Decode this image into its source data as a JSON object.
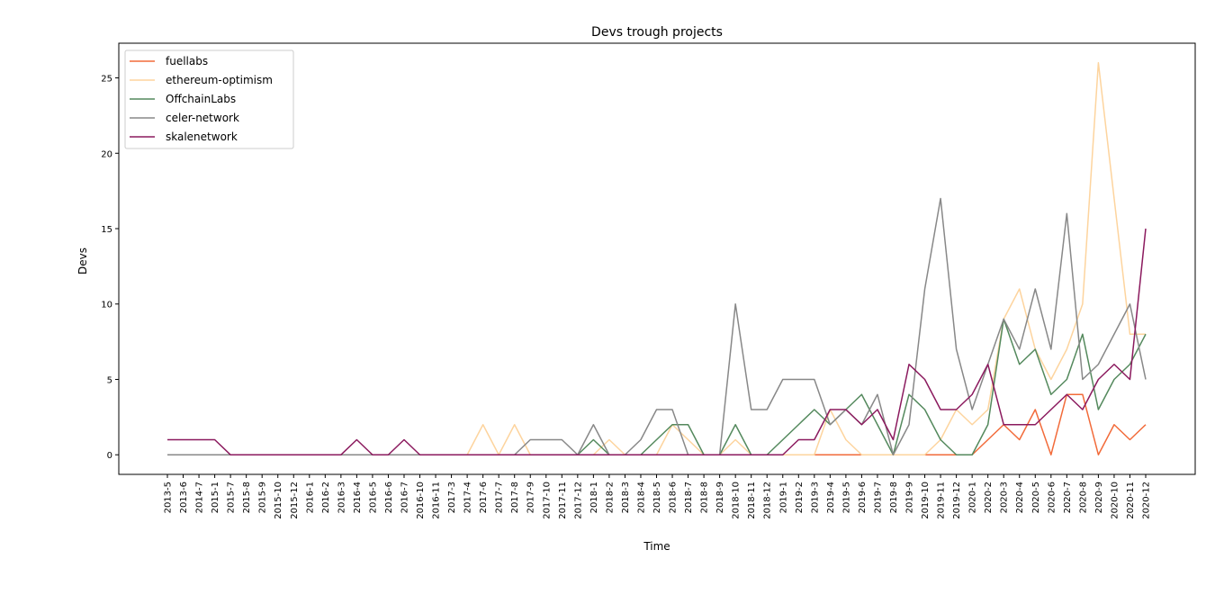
{
  "chart_data": {
    "type": "line",
    "title": "Devs trough projects",
    "xlabel": "Time",
    "ylabel": "Devs",
    "ylim": [
      -1.3,
      27.3
    ],
    "yticks": [
      0,
      5,
      10,
      15,
      20,
      25
    ],
    "grid": false,
    "legend_position": "top-left",
    "categories": [
      "2013-5",
      "2013-6",
      "2014-7",
      "2015-1",
      "2015-7",
      "2015-8",
      "2015-9",
      "2015-10",
      "2015-12",
      "2016-1",
      "2016-2",
      "2016-3",
      "2016-4",
      "2016-5",
      "2016-6",
      "2016-7",
      "2016-10",
      "2016-11",
      "2017-3",
      "2017-4",
      "2017-6",
      "2017-7",
      "2017-8",
      "2017-9",
      "2017-10",
      "2017-11",
      "2017-12",
      "2018-1",
      "2018-2",
      "2018-3",
      "2018-4",
      "2018-5",
      "2018-6",
      "2018-7",
      "2018-8",
      "2018-9",
      "2018-10",
      "2018-11",
      "2018-12",
      "2019-1",
      "2019-2",
      "2019-3",
      "2019-4",
      "2019-5",
      "2019-6",
      "2019-7",
      "2019-8",
      "2019-9",
      "2019-10",
      "2019-11",
      "2019-12",
      "2020-1",
      "2020-2",
      "2020-3",
      "2020-4",
      "2020-5",
      "2020-6",
      "2020-7",
      "2020-8",
      "2020-9",
      "2020-10",
      "2020-11",
      "2020-12"
    ],
    "series": [
      {
        "name": "fuellabs",
        "color": "#f26b3a",
        "values": [
          0,
          0,
          0,
          0,
          0,
          0,
          0,
          0,
          0,
          0,
          0,
          0,
          0,
          0,
          0,
          0,
          0,
          0,
          0,
          0,
          0,
          0,
          0,
          0,
          0,
          0,
          0,
          0,
          0,
          0,
          0,
          0,
          0,
          0,
          0,
          0,
          0,
          0,
          0,
          0,
          0,
          0,
          0,
          0,
          0,
          0,
          0,
          0,
          0,
          0,
          0,
          0,
          1,
          2,
          1,
          3,
          0,
          4,
          4,
          0,
          2,
          1,
          2
        ]
      },
      {
        "name": "ethereum-optimism",
        "color": "#fdd49e",
        "values": [
          0,
          0,
          0,
          0,
          0,
          0,
          0,
          0,
          0,
          0,
          0,
          0,
          0,
          0,
          0,
          0,
          0,
          0,
          0,
          0,
          2,
          0,
          2,
          0,
          0,
          0,
          0,
          0,
          1,
          0,
          0,
          0,
          2,
          1,
          0,
          0,
          1,
          0,
          0,
          0,
          0,
          0,
          3,
          1,
          0,
          0,
          0,
          0,
          0,
          1,
          3,
          2,
          3,
          9,
          11,
          7,
          5,
          7,
          10,
          26,
          17,
          8,
          8
        ]
      },
      {
        "name": "OffchainLabs",
        "color": "#54895d",
        "values": [
          0,
          0,
          0,
          0,
          0,
          0,
          0,
          0,
          0,
          0,
          0,
          0,
          0,
          0,
          0,
          0,
          0,
          0,
          0,
          0,
          0,
          0,
          0,
          0,
          0,
          0,
          0,
          1,
          0,
          0,
          0,
          1,
          2,
          2,
          0,
          0,
          2,
          0,
          0,
          1,
          2,
          3,
          2,
          3,
          4,
          2,
          0,
          4,
          3,
          1,
          0,
          0,
          2,
          9,
          6,
          7,
          4,
          5,
          8,
          3,
          5,
          6,
          8
        ]
      },
      {
        "name": "celer-network",
        "color": "#888888",
        "values": [
          0,
          0,
          0,
          0,
          0,
          0,
          0,
          0,
          0,
          0,
          0,
          0,
          0,
          0,
          0,
          0,
          0,
          0,
          0,
          0,
          0,
          0,
          0,
          1,
          1,
          1,
          0,
          2,
          0,
          0,
          1,
          3,
          3,
          0,
          0,
          0,
          10,
          3,
          3,
          5,
          5,
          5,
          2,
          3,
          2,
          4,
          0,
          2,
          11,
          17,
          7,
          3,
          6,
          9,
          7,
          11,
          7,
          16,
          5,
          6,
          8,
          10,
          5
        ]
      },
      {
        "name": "skalenetwork",
        "color": "#8b1a5e",
        "values": [
          1,
          1,
          1,
          1,
          0,
          0,
          0,
          0,
          0,
          0,
          0,
          0,
          1,
          0,
          0,
          1,
          0,
          0,
          0,
          0,
          0,
          0,
          0,
          0,
          0,
          0,
          0,
          0,
          0,
          0,
          0,
          0,
          0,
          0,
          0,
          0,
          0,
          0,
          0,
          0,
          1,
          1,
          3,
          3,
          2,
          3,
          1,
          6,
          5,
          3,
          3,
          4,
          6,
          2,
          2,
          2,
          3,
          4,
          3,
          5,
          6,
          5,
          15
        ]
      }
    ]
  }
}
